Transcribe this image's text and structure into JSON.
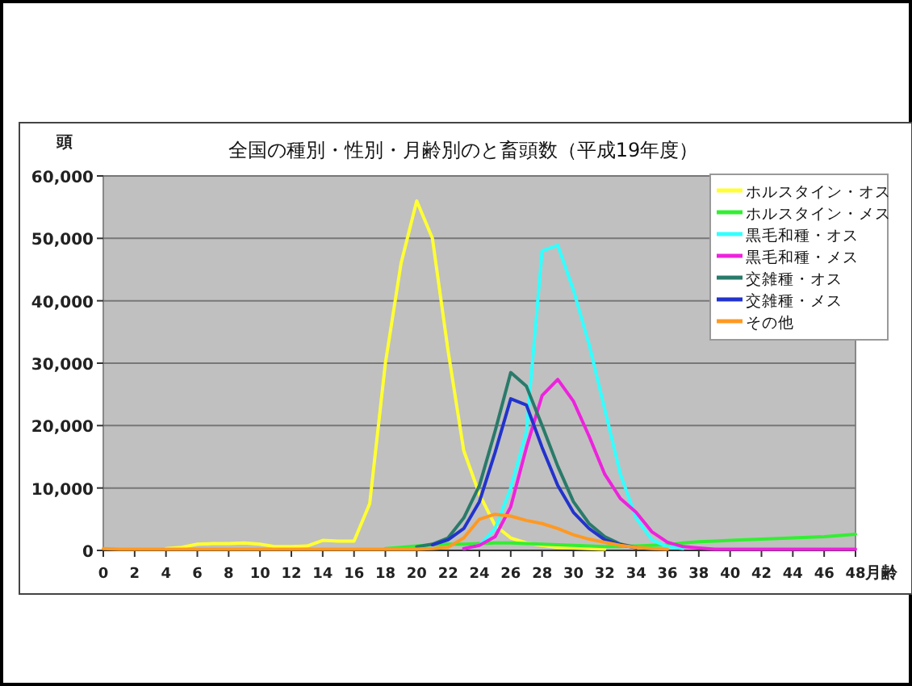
{
  "chart_data": {
    "type": "line",
    "title": "全国の種別・性別・月齢別のと畜頭数（平成19年度）",
    "xlabel": "月齢",
    "ylabel": "頭",
    "x": [
      0,
      1,
      2,
      3,
      4,
      5,
      6,
      7,
      8,
      9,
      10,
      11,
      12,
      13,
      14,
      15,
      16,
      17,
      18,
      19,
      20,
      21,
      22,
      23,
      24,
      25,
      26,
      27,
      28,
      29,
      30,
      31,
      32,
      33,
      34,
      35,
      36,
      37,
      38,
      39,
      40,
      41,
      42,
      43,
      44,
      45,
      46,
      47,
      48
    ],
    "xlim": [
      0,
      48
    ],
    "xticks": [
      0,
      2,
      4,
      6,
      8,
      10,
      12,
      14,
      16,
      18,
      20,
      22,
      24,
      26,
      28,
      30,
      32,
      34,
      36,
      38,
      40,
      42,
      44,
      46,
      48
    ],
    "ylim": [
      0,
      60000
    ],
    "yticks": [
      0,
      {
        "value": 10000,
        "label": "10,000"
      },
      {
        "value": 20000,
        "label": "20,000"
      },
      {
        "value": 30000,
        "label": "30,000"
      },
      {
        "value": 40000,
        "label": "40,000"
      },
      {
        "value": 50000,
        "label": "50,000"
      },
      {
        "value": 60000,
        "label": "60,000"
      }
    ],
    "grid": "y",
    "legend": "top right",
    "marker": "none",
    "line_style": "solid",
    "series": [
      {
        "name": "ホルスタイン・オス",
        "color": "#ffff33",
        "values": [
          null,
          null,
          null,
          null,
          300,
          500,
          1000,
          1100,
          1100,
          1200,
          1000,
          600,
          600,
          700,
          1600,
          1500,
          1500,
          7500,
          30000,
          46000,
          56000,
          50000,
          32000,
          16000,
          9000,
          4000,
          2000,
          1200,
          800,
          500,
          400,
          300,
          200,
          null,
          null,
          null,
          null,
          null,
          null,
          null,
          null,
          null,
          null,
          null,
          null,
          null,
          null,
          null,
          null
        ]
      },
      {
        "name": "ホルスタイン・メス",
        "color": "#33ee33",
        "values": [
          null,
          null,
          null,
          null,
          null,
          null,
          null,
          null,
          null,
          null,
          null,
          null,
          null,
          null,
          null,
          null,
          null,
          null,
          300,
          500,
          700,
          900,
          1000,
          1000,
          1100,
          1200,
          1200,
          1100,
          1000,
          900,
          800,
          700,
          600,
          600,
          700,
          800,
          900,
          1200,
          1400,
          1500,
          1600,
          1700,
          1800,
          1900,
          2000,
          2100,
          2200,
          2400,
          2600
        ]
      },
      {
        "name": "黒毛和種・オス",
        "color": "#33ffff",
        "values": [
          null,
          null,
          null,
          null,
          null,
          null,
          null,
          null,
          null,
          null,
          null,
          null,
          null,
          null,
          null,
          null,
          null,
          null,
          null,
          null,
          null,
          null,
          null,
          300,
          800,
          3500,
          10000,
          19000,
          48000,
          48900,
          41700,
          33000,
          22600,
          12200,
          5200,
          1700,
          600,
          300,
          null,
          null,
          null,
          null,
          null,
          null,
          null,
          null,
          null,
          null,
          null
        ]
      },
      {
        "name": "黒毛和種・メス",
        "color": "#ee22dd",
        "values": [
          null,
          null,
          null,
          null,
          null,
          null,
          null,
          null,
          null,
          null,
          null,
          null,
          null,
          null,
          null,
          null,
          null,
          null,
          null,
          null,
          null,
          null,
          null,
          300,
          800,
          2200,
          7000,
          16500,
          24800,
          27400,
          23900,
          18300,
          12200,
          8300,
          6100,
          3000,
          1300,
          600,
          400,
          200,
          200,
          200,
          200,
          200,
          200,
          200,
          200,
          200,
          200
        ]
      },
      {
        "name": "交雑種・オス",
        "color": "#2a7a6a",
        "values": [
          null,
          null,
          null,
          null,
          null,
          null,
          null,
          null,
          null,
          null,
          null,
          null,
          null,
          null,
          null,
          null,
          null,
          null,
          null,
          null,
          600,
          1000,
          2000,
          5200,
          10400,
          19100,
          28500,
          26300,
          20000,
          13500,
          7800,
          4300,
          2200,
          1000,
          500,
          null,
          null,
          null,
          null,
          null,
          null,
          null,
          null,
          null,
          null,
          null,
          null,
          null,
          null
        ]
      },
      {
        "name": "交雑種・メス",
        "color": "#2233cc",
        "values": [
          null,
          null,
          null,
          null,
          null,
          null,
          null,
          null,
          null,
          null,
          null,
          null,
          null,
          null,
          null,
          null,
          null,
          null,
          null,
          null,
          null,
          900,
          1700,
          3500,
          7800,
          15700,
          24300,
          23300,
          16500,
          10400,
          6100,
          3500,
          1700,
          900,
          400,
          null,
          null,
          null,
          null,
          null,
          null,
          null,
          null,
          null,
          null,
          null,
          null,
          null,
          null
        ]
      },
      {
        "name": "その他",
        "color": "#ff9922",
        "values": [
          300,
          200,
          200,
          200,
          200,
          200,
          200,
          200,
          200,
          200,
          200,
          200,
          200,
          200,
          200,
          200,
          200,
          200,
          200,
          200,
          200,
          300,
          500,
          2000,
          5000,
          5800,
          5500,
          4800,
          4300,
          3500,
          2500,
          1800,
          1300,
          800,
          500,
          300,
          200,
          null,
          null,
          null,
          null,
          null,
          null,
          null,
          null,
          null,
          null,
          null,
          null
        ]
      }
    ]
  }
}
